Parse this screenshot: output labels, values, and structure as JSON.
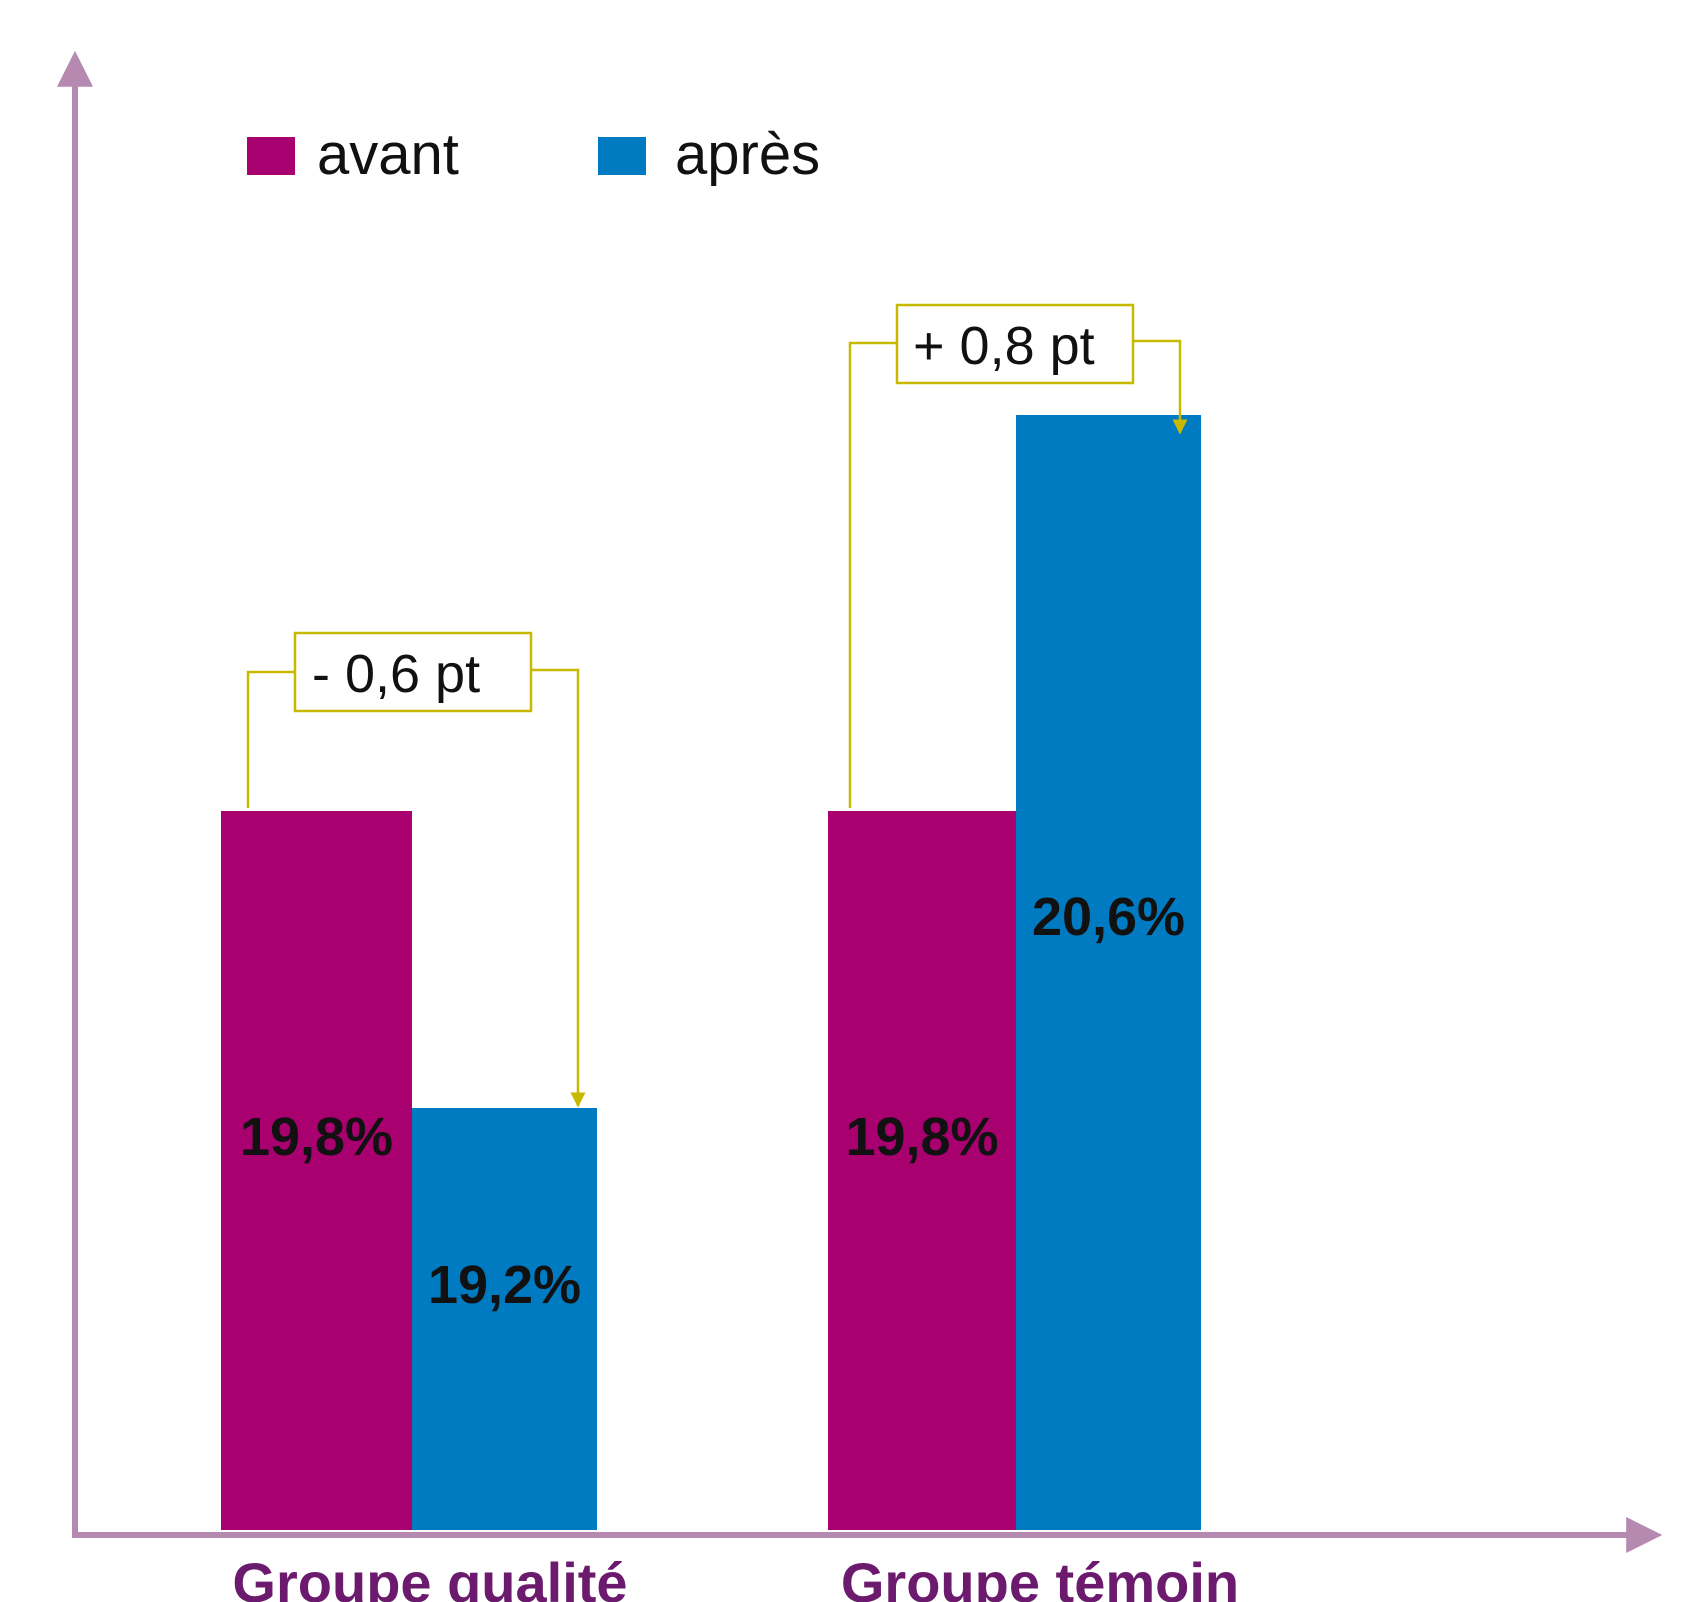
{
  "chart_data": {
    "type": "bar",
    "categories": [
      "Groupe qualité",
      "Groupe témoin"
    ],
    "series": [
      {
        "name": "avant",
        "values": [
          19.8,
          19.8
        ],
        "labels": [
          "19,8%",
          "19,8%"
        ],
        "color": "#a8006f"
      },
      {
        "name": "après",
        "values": [
          19.2,
          20.6
        ],
        "labels": [
          "19,2%",
          "20,6%"
        ],
        "color": "#007bc1"
      }
    ],
    "annotations": [
      "- 0,6 pt",
      "+ 0,8 pt"
    ],
    "annotation_color": "#c8b900",
    "axis_color": "#b589b0",
    "legend": "top-left",
    "grid": false
  }
}
